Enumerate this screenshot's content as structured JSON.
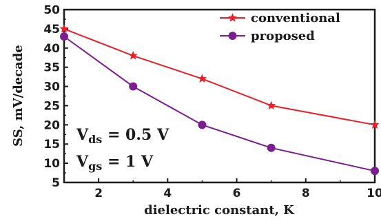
{
  "chart_data": {
    "type": "line",
    "xlabel": "dielectric constant, K",
    "ylabel": "SS, mV/decade",
    "xlim": [
      1,
      10
    ],
    "ylim": [
      5,
      50
    ],
    "xticks": [
      2,
      4,
      6,
      8,
      10
    ],
    "yticks": [
      5,
      10,
      15,
      20,
      25,
      30,
      35,
      40,
      45,
      50
    ],
    "grid": false,
    "legend_position": "top-right",
    "series": [
      {
        "name": "conventional",
        "color": "#e8202a",
        "marker": "star",
        "x": [
          1,
          3,
          5,
          7,
          10
        ],
        "y": [
          45,
          38,
          32,
          25,
          20
        ]
      },
      {
        "name": "proposed",
        "color": "#7a1f8f",
        "marker": "circle",
        "x": [
          1,
          3,
          5,
          7,
          10
        ],
        "y": [
          43,
          30,
          20,
          14,
          8
        ]
      }
    ],
    "annotations": {
      "vds": {
        "main": "V",
        "sub": "ds",
        "rest": " = 0.5 V"
      },
      "vgs": {
        "main": "V",
        "sub": "gs",
        "rest": " = 1 V"
      }
    }
  }
}
